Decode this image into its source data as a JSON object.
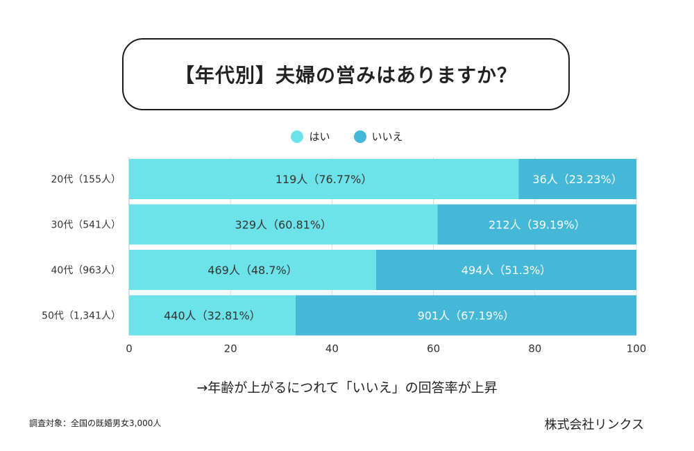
{
  "title": "【年代別】夫婦の営みはありますか？",
  "note": "→年齢が上がるにつれて「いいえ」の回答率が上昇",
  "source": "調査対象：全国の既婚男女3,000人",
  "company": "株式会社リンクス",
  "colors": {
    "yes": "#6CE3E8",
    "no": "#44B8D6",
    "grid": "#d8d8d8",
    "text": "#333333",
    "text_on_dark": "#ffffff"
  },
  "chart_data": {
    "type": "bar",
    "orientation": "horizontal",
    "stacked": true,
    "title": "【年代別】夫婦の営みはありますか？",
    "categories": [
      "20代（155人）",
      "30代（541人）",
      "40代（963人）",
      "50代（1,341人）"
    ],
    "series": [
      {
        "name": "はい",
        "values": [
          76.77,
          60.81,
          48.7,
          32.81
        ],
        "labels": [
          "119人（76.77%）",
          "329人（60.81%）",
          "469人（48.7%）",
          "440人（32.81%）"
        ]
      },
      {
        "name": "いいえ",
        "values": [
          23.23,
          39.19,
          51.3,
          67.19
        ],
        "labels": [
          "36人（23.23%）",
          "212人（39.19%）",
          "494人（51.3%）",
          "901人（67.19%）"
        ]
      }
    ],
    "xlim": [
      0,
      100
    ],
    "xticks": [
      0,
      20,
      40,
      60,
      80,
      100
    ],
    "legend": "top-center",
    "grid": true
  }
}
